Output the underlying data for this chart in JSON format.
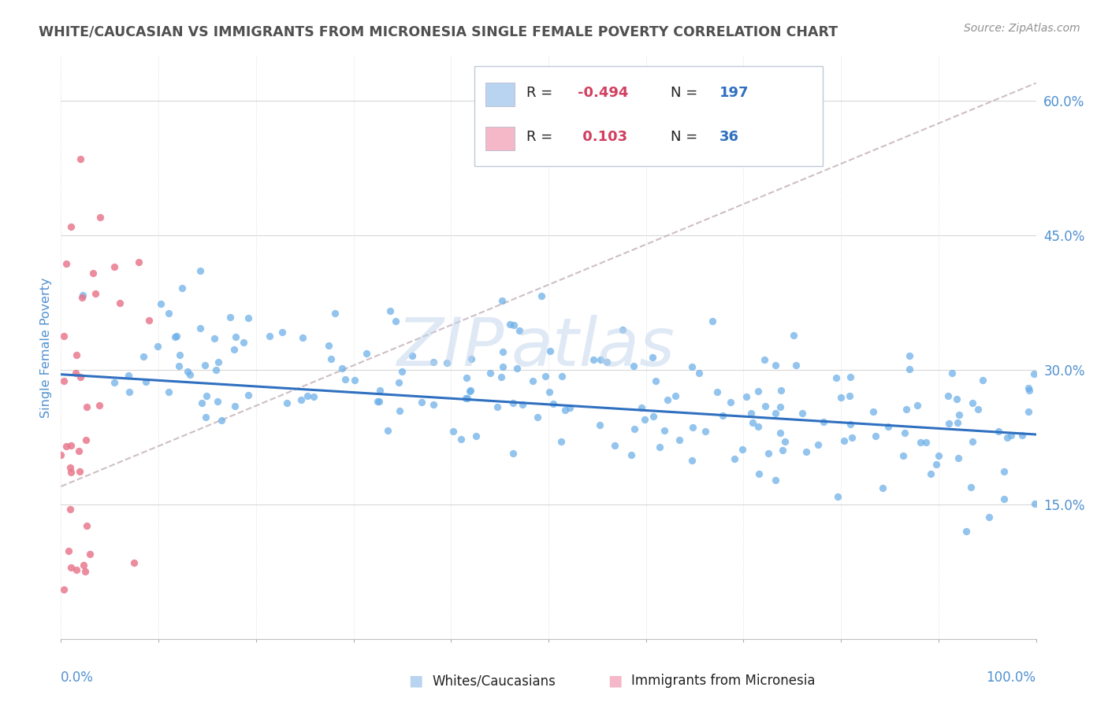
{
  "title": "WHITE/CAUCASIAN VS IMMIGRANTS FROM MICRONESIA SINGLE FEMALE POVERTY CORRELATION CHART",
  "source_text": "Source: ZipAtlas.com",
  "ylabel": "Single Female Poverty",
  "watermark_zip": "ZIP",
  "watermark_atlas": "atlas",
  "xmin": 0.0,
  "xmax": 1.0,
  "ymin": 0.0,
  "ymax": 0.65,
  "yticks": [
    0.15,
    0.3,
    0.45,
    0.6
  ],
  "ytick_labels": [
    "15.0%",
    "30.0%",
    "45.0%",
    "60.0%"
  ],
  "blue_scatter_color": "#6aaee8",
  "pink_scatter_color": "#e8748a",
  "blue_legend_fill": "#b8d4f0",
  "pink_legend_fill": "#f4b8c8",
  "blue_line_color": "#3070c0",
  "pink_line_color": "#d8b0b8",
  "blue_R": -0.494,
  "blue_N": 197,
  "pink_R": 0.103,
  "pink_N": 36,
  "title_color": "#505050",
  "axis_color": "#5090d0",
  "legend_R_neg_color": "#d04060",
  "legend_R_pos_color": "#d04060",
  "legend_N_color": "#3070c0",
  "grid_color": "#d8d8d8",
  "blue_seed": 1234,
  "pink_seed": 5678
}
